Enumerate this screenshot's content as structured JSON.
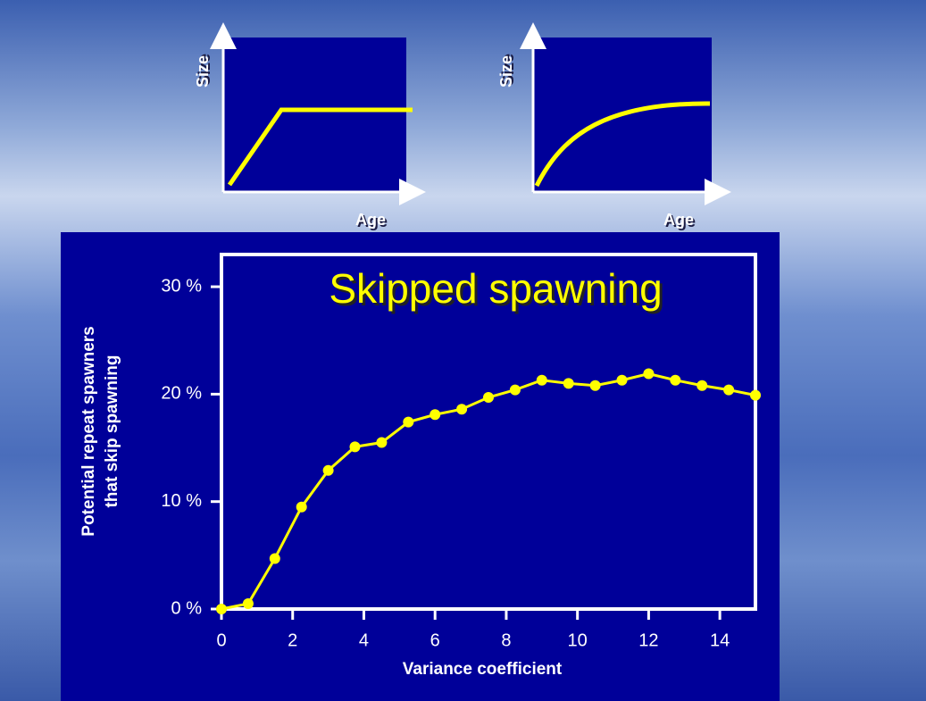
{
  "insets": [
    {
      "y_label": "Size",
      "x_label": "Age"
    },
    {
      "y_label": "Size",
      "x_label": "Age"
    }
  ],
  "chart_data": {
    "type": "line",
    "title": "Skipped spawning",
    "x_label": "Variance coefficient",
    "y_label": [
      "Potential repeat spawners",
      "that skip spawning"
    ],
    "x": [
      0,
      0.75,
      1.5,
      2.25,
      3,
      3.75,
      4.5,
      5.25,
      6,
      6.75,
      7.5,
      8.25,
      9,
      9.75,
      10.5,
      11.25,
      12,
      12.75,
      13.5,
      14.25,
      15
    ],
    "values": [
      0,
      0.5,
      4.7,
      9.5,
      12.9,
      15.1,
      15.5,
      17.4,
      18.1,
      18.6,
      19.7,
      20.4,
      21.3,
      21.0,
      20.8,
      21.3,
      21.9,
      21.3,
      20.8,
      20.4,
      19.9
    ],
    "color": "#ffff00",
    "xlim": [
      0,
      15
    ],
    "ylim": [
      0,
      33
    ],
    "xticks": [
      0,
      2,
      4,
      6,
      8,
      10,
      12,
      14
    ],
    "yticks": [
      {
        "value": 0,
        "label": "0 %"
      },
      {
        "value": 10,
        "label": "10 %"
      },
      {
        "value": 20,
        "label": "20 %"
      },
      {
        "value": 30,
        "label": "30 %"
      }
    ]
  }
}
